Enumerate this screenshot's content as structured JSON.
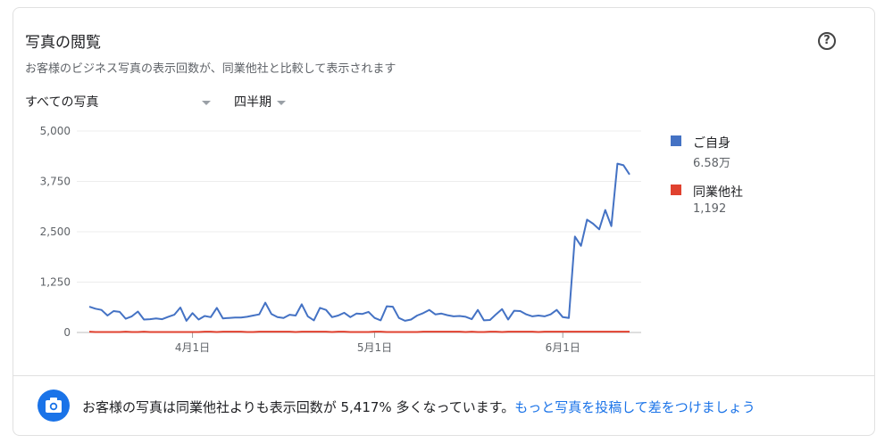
{
  "header": {
    "title": "写真の閲覧",
    "subtitle": "お客様のビジネス写真の表示回数が、同業他社と比較して表示されます",
    "help_icon": "help-circle-icon"
  },
  "filters": {
    "photo_type": "すべての写真",
    "period": "四半期"
  },
  "legend": [
    {
      "name": "ご自身",
      "value": "6.58万",
      "color": "#4472c4"
    },
    {
      "name": "同業他社",
      "value": "1,192",
      "color": "#e0412f"
    }
  ],
  "chart_data": {
    "type": "line",
    "title": "",
    "xlabel": "",
    "ylabel": "",
    "ylim": [
      0,
      5000
    ],
    "y_ticks": [
      "0",
      "1,250",
      "2,500",
      "3,750",
      "5,000"
    ],
    "x_ticks": [
      {
        "label": "4月1日",
        "index": 17
      },
      {
        "label": "5月1日",
        "index": 47
      },
      {
        "label": "6月1日",
        "index": 78
      }
    ],
    "grid": true,
    "legend_position": "right",
    "series": [
      {
        "name": "ご自身",
        "color": "#4472c4",
        "values": [
          640,
          590,
          560,
          420,
          530,
          510,
          340,
          400,
          520,
          320,
          330,
          350,
          330,
          390,
          440,
          620,
          290,
          480,
          320,
          410,
          380,
          610,
          350,
          360,
          370,
          370,
          390,
          420,
          450,
          740,
          460,
          380,
          360,
          440,
          420,
          700,
          400,
          300,
          610,
          560,
          380,
          420,
          490,
          380,
          470,
          460,
          510,
          360,
          300,
          650,
          640,
          360,
          290,
          320,
          420,
          480,
          560,
          450,
          470,
          430,
          400,
          410,
          390,
          330,
          560,
          300,
          310,
          450,
          580,
          320,
          540,
          530,
          450,
          400,
          420,
          400,
          450,
          560,
          380,
          360,
          2380,
          2150,
          2800,
          2700,
          2560,
          3040,
          2640,
          4190,
          4150,
          3920
        ]
      },
      {
        "name": "同業他社",
        "color": "#e0412f",
        "values": [
          20,
          10,
          10,
          10,
          10,
          10,
          20,
          10,
          10,
          20,
          10,
          10,
          10,
          10,
          10,
          10,
          10,
          10,
          10,
          20,
          20,
          10,
          20,
          20,
          20,
          20,
          10,
          10,
          20,
          20,
          20,
          20,
          20,
          20,
          10,
          20,
          20,
          20,
          20,
          20,
          10,
          20,
          20,
          10,
          10,
          10,
          10,
          20,
          20,
          10,
          10,
          10,
          10,
          10,
          10,
          20,
          20,
          20,
          20,
          20,
          20,
          20,
          10,
          20,
          10,
          10,
          20,
          20,
          10,
          20,
          20,
          20,
          20,
          20,
          10,
          20,
          20,
          20,
          20,
          20,
          20,
          20,
          20,
          20,
          20,
          20,
          20,
          20,
          20,
          20
        ]
      }
    ]
  },
  "footer": {
    "icon": "camera-icon",
    "message_prefix": "お客様の写真は同業他社よりも表示回数が ",
    "percent": "5,417%",
    "message_suffix": " 多くなっています。",
    "link": "もっと写真を投稿して差をつけましょう"
  }
}
